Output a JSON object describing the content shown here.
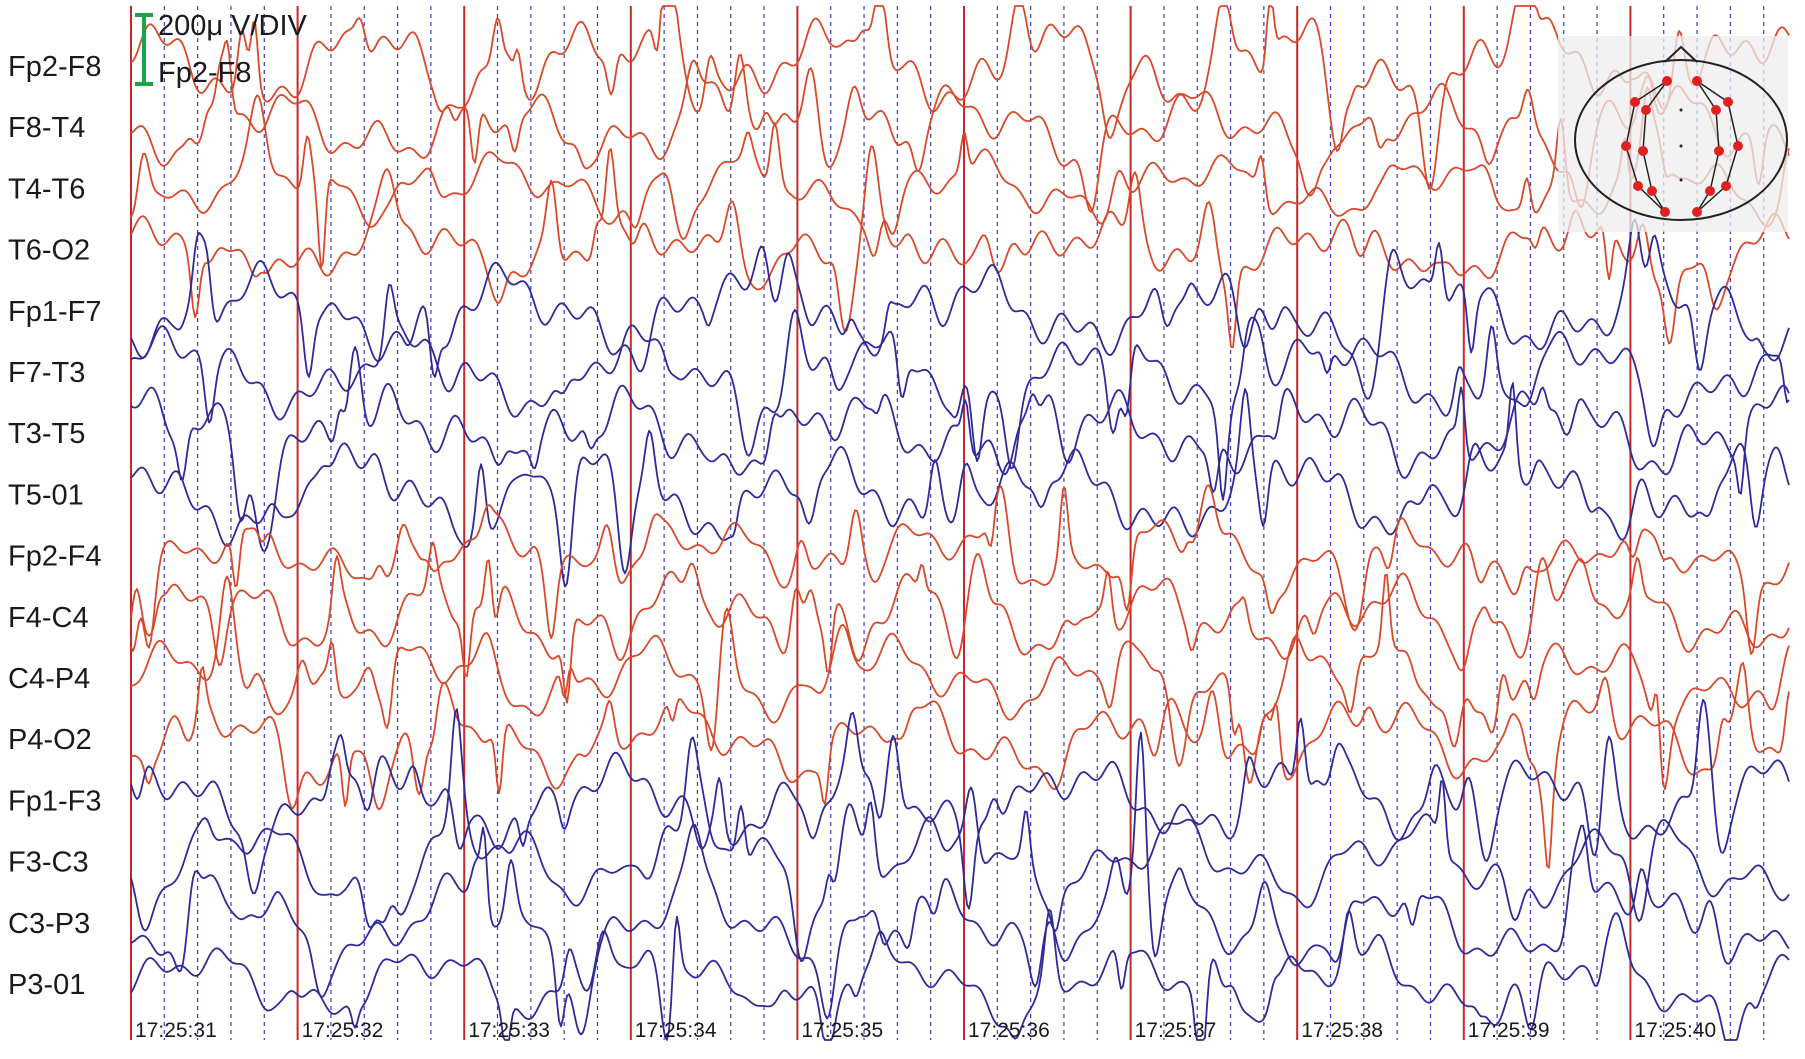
{
  "scale": {
    "label": "200μ V/DIV",
    "reference_channel": "Fp2-F8",
    "bar_color": "#1aa34a"
  },
  "colors": {
    "right_hemisphere": "#d8492a",
    "left_hemisphere": "#2e2a98",
    "second_line": "#c62828",
    "subdivision_line": "#3a3ac8"
  },
  "head_map": {
    "icon": "head-electrode-map-icon",
    "electrode_color": "#e02020"
  },
  "chart_data": {
    "type": "line",
    "title": "",
    "xlabel": "",
    "ylabel": "",
    "x_unit": "time",
    "x_ticks": [
      "17:25:31",
      "17:25:32",
      "17:25:33",
      "17:25:34",
      "17:25:35",
      "17:25:36",
      "17:25:37",
      "17:25:38",
      "17:25:39",
      "17:25:40"
    ],
    "x_range": [
      "17:25:31",
      "17:25:41"
    ],
    "subdivisions_per_second": 5,
    "y_scale_uV_per_div": 200,
    "grid": true,
    "legend": "none",
    "series": [
      {
        "name": "Fp2-F8",
        "hemisphere": "right"
      },
      {
        "name": "F8-T4",
        "hemisphere": "right"
      },
      {
        "name": "T4-T6",
        "hemisphere": "right"
      },
      {
        "name": "T6-O2",
        "hemisphere": "right"
      },
      {
        "name": "Fp1-F7",
        "hemisphere": "left"
      },
      {
        "name": "F7-T3",
        "hemisphere": "left"
      },
      {
        "name": "T3-T5",
        "hemisphere": "left"
      },
      {
        "name": "T5-01",
        "hemisphere": "left"
      },
      {
        "name": "Fp2-F4",
        "hemisphere": "right"
      },
      {
        "name": "F4-C4",
        "hemisphere": "right"
      },
      {
        "name": "C4-P4",
        "hemisphere": "right"
      },
      {
        "name": "P4-O2",
        "hemisphere": "right"
      },
      {
        "name": "Fp1-F3",
        "hemisphere": "left"
      },
      {
        "name": "F3-C3",
        "hemisphere": "left"
      },
      {
        "name": "C3-P3",
        "hemisphere": "left"
      },
      {
        "name": "P3-01",
        "hemisphere": "left"
      }
    ]
  }
}
